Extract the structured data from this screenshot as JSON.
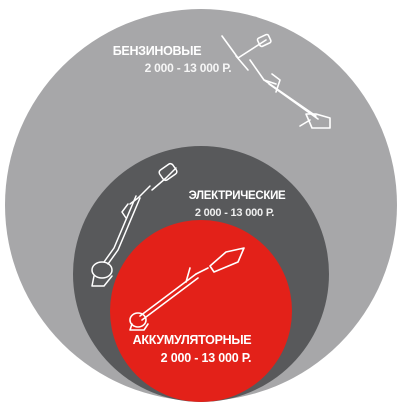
{
  "colors": {
    "background": "#ffffff",
    "outer_circle": "#a7a7a9",
    "middle_circle": "#58595b",
    "inner_circle": "#e32119",
    "text": "#ffffff"
  },
  "categories": [
    {
      "id": "petrol",
      "title": "БЕНЗИНОВЫЕ",
      "price": "2 000 - 13 000 р.",
      "icon": "petrol-trimmer-icon"
    },
    {
      "id": "electric",
      "title": "ЭЛЕКТРИЧЕСКИЕ",
      "price": "2 000 - 13 000 р.",
      "icon": "electric-trimmer-icon"
    },
    {
      "id": "battery",
      "title": "АККУМУЛЯТОРНЫЕ",
      "price": "2 000 - 13 000 р.",
      "icon": "battery-trimmer-icon"
    }
  ]
}
